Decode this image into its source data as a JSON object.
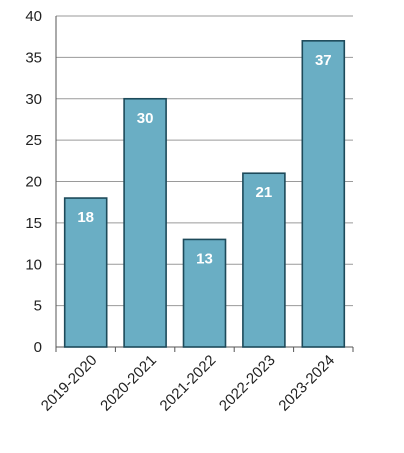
{
  "chart_data": {
    "type": "bar",
    "title": "",
    "xlabel": "",
    "ylabel": "",
    "categories": [
      "2019-2020",
      "2020-2021",
      "2021-2022",
      "2022-2023",
      "2023-2024"
    ],
    "values": [
      18,
      30,
      13,
      21,
      37
    ],
    "data_labels": [
      "18",
      "30",
      "13",
      "21",
      "37"
    ],
    "ylim": [
      0,
      40
    ],
    "yticks": [
      0,
      5,
      10,
      15,
      20,
      25,
      30,
      35,
      40
    ],
    "grid": true,
    "legend": "none",
    "colors": {
      "bar_fill": "#6aaec4",
      "bar_stroke": "#1d4a5a",
      "grid": "#9a9a9a",
      "axis": "#555555",
      "data_label": "#ffffff",
      "tick_label": "#222222"
    }
  }
}
